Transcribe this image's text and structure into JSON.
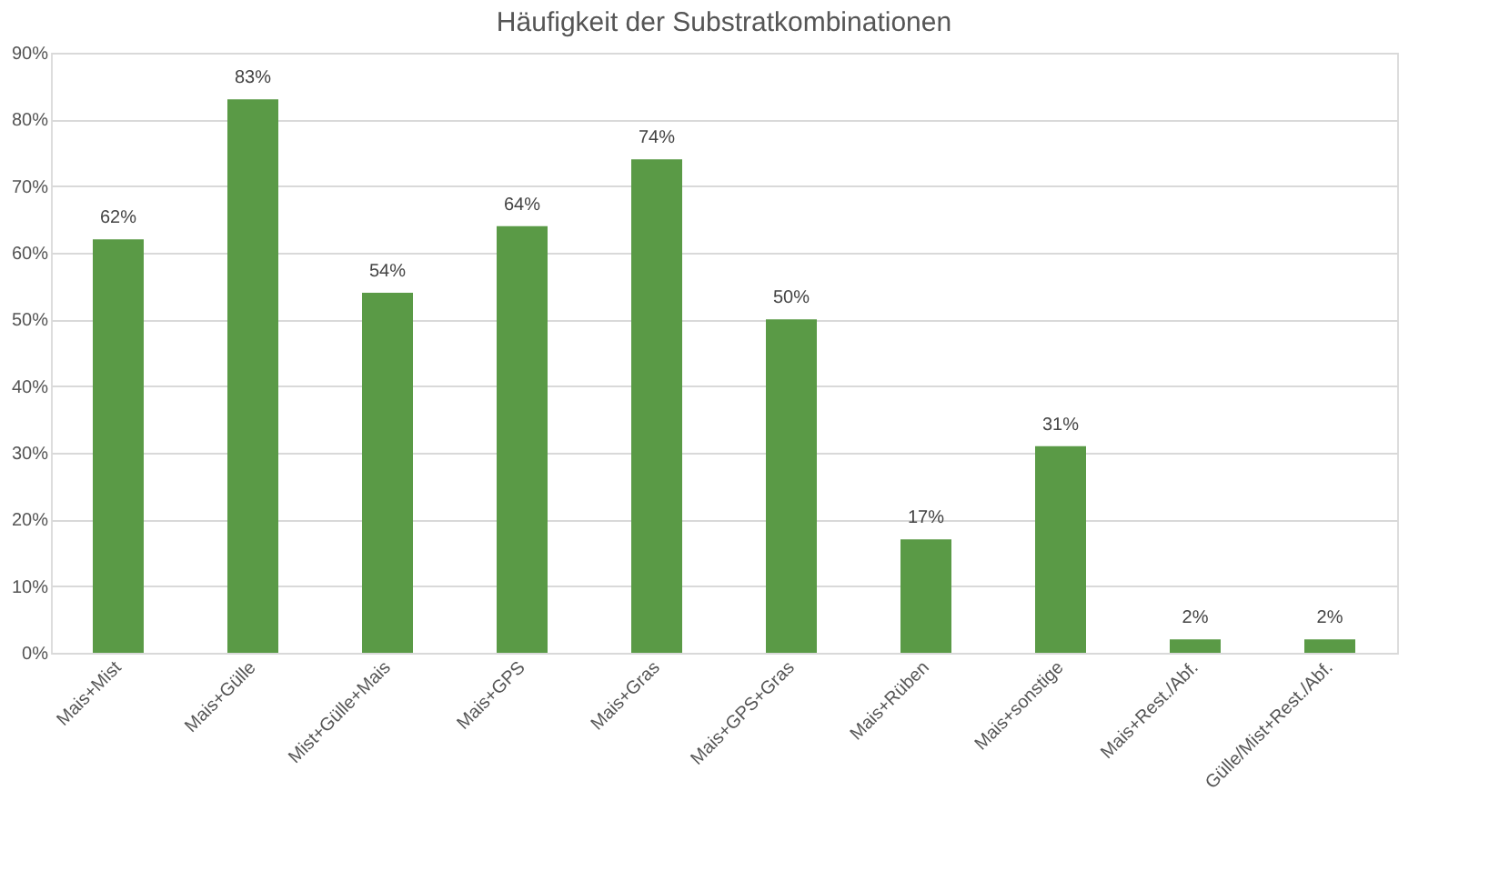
{
  "chart_data": {
    "type": "bar",
    "title": "Häufigkeit der Substratkombinationen",
    "categories": [
      "Mais+Mist",
      "Mais+Gülle",
      "Mist+Gülle+Mais",
      "Mais+GPS",
      "Mais+Gras",
      "Mais+GPS+Gras",
      "Mais+Rüben",
      "Mais+sonstige",
      "Mais+Rest./Abf.",
      "Gülle/Mist+Rest./Abf."
    ],
    "values": [
      62,
      83,
      54,
      64,
      74,
      50,
      17,
      31,
      2,
      2
    ],
    "value_labels": [
      "62%",
      "83%",
      "54%",
      "64%",
      "74%",
      "50%",
      "17%",
      "31%",
      "2%",
      "2%"
    ],
    "color": "#5a9a46",
    "ylim": [
      0,
      90
    ],
    "yticks": [
      {
        "value": 0,
        "label": "0%"
      },
      {
        "value": 10,
        "label": "10%"
      },
      {
        "value": 20,
        "label": "20%"
      },
      {
        "value": 30,
        "label": "30%"
      },
      {
        "value": 40,
        "label": "40%"
      },
      {
        "value": 50,
        "label": "50%"
      },
      {
        "value": 60,
        "label": "60%"
      },
      {
        "value": 70,
        "label": "70%"
      },
      {
        "value": 80,
        "label": "80%"
      },
      {
        "value": 90,
        "label": "90%"
      }
    ],
    "grid": "y"
  }
}
